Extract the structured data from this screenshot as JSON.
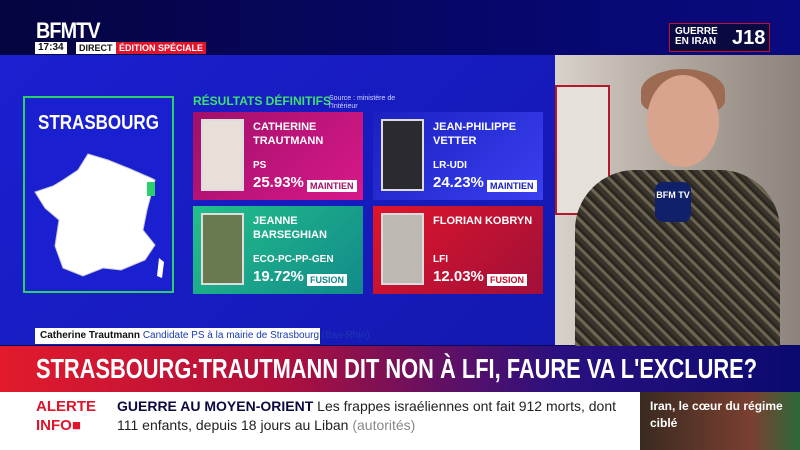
{
  "channel": {
    "logo": "BFMTV",
    "time": "17:34",
    "direct": "DIRECT",
    "edition": "ÉDITION SPÉCIALE",
    "corner_line1": "GUERRE EN IRAN",
    "corner_day": "J18"
  },
  "results": {
    "city": "STRASBOURG",
    "title": "RÉSULTATS DÉFINITIFS",
    "source": "Source : ministère de l'Intérieur",
    "candidates": [
      {
        "name": "CATHERINE TRAUTMANN",
        "party": "PS",
        "percent": "25.93%",
        "status": "MAINTIEN",
        "color": "#c8147a"
      },
      {
        "name": "JEAN-PHILIPPE VETTER",
        "party": "LR-UDI",
        "percent": "24.23%",
        "status": "MAINTIEN",
        "color": "#2a30e0"
      },
      {
        "name": "JEANNE BARSEGHIAN",
        "party": "ECO-PC-PP-GEN",
        "percent": "19.72%",
        "status": "FUSION",
        "color": "#1aa88a"
      },
      {
        "name": "FLORIAN KOBRYN",
        "party": "LFI",
        "percent": "12.03%",
        "status": "FUSION",
        "color": "#c8102e"
      }
    ]
  },
  "video": {
    "mic_label": "BFM TV"
  },
  "lower_third": {
    "name": "Catherine Trautmann",
    "role": "Candidate PS à la mairie de Strasbourg (Bas-Rhin)"
  },
  "headline": "STRASBOURG:TRAUTMANN DIT NON À LFI, FAURE VA L'EXCLURE?",
  "ticker": {
    "label_1": "ALERTE",
    "label_2": "INFO",
    "topic": "GUERRE AU MOYEN-ORIENT",
    "text": "Les frappes israéliennes ont fait 912 morts, dont 111 enfants, depuis 18 jours au Liban",
    "attribution": "(autorités)"
  },
  "promo": "Iran, le cœur du régime ciblé"
}
